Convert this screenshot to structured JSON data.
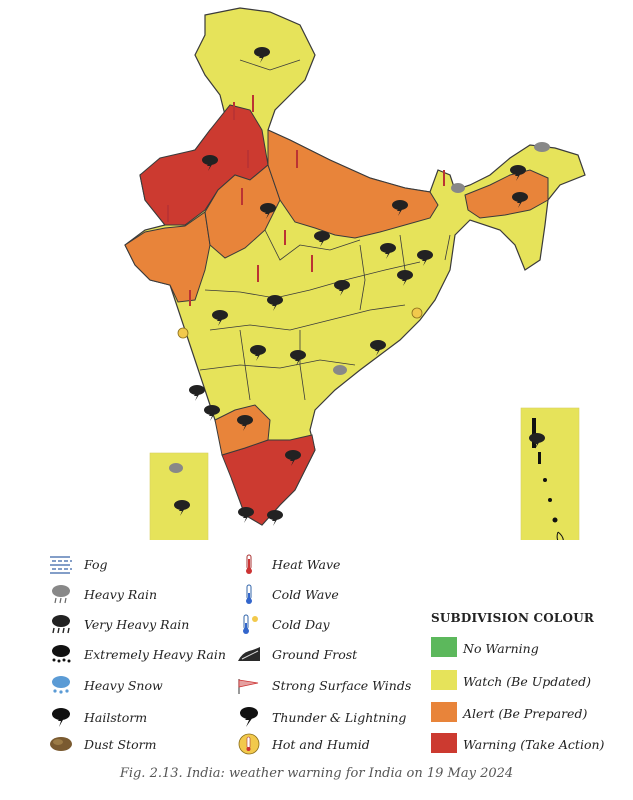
{
  "legend": {
    "hazards_left": [
      {
        "label": "Fog",
        "icon": "fog-icon"
      },
      {
        "label": "Heavy Rain",
        "icon": "heavy-rain-icon"
      },
      {
        "label": "Very Heavy Rain",
        "icon": "very-heavy-rain-icon"
      },
      {
        "label": "Extremely Heavy Rain",
        "icon": "extremely-heavy-rain-icon"
      },
      {
        "label": "Heavy Snow",
        "icon": "heavy-snow-icon"
      },
      {
        "label": "Hailstorm",
        "icon": "hailstorm-icon"
      },
      {
        "label": "Dust Storm",
        "icon": "dust-storm-icon"
      }
    ],
    "hazards_right": [
      {
        "label": "Heat Wave",
        "icon": "heat-wave-icon"
      },
      {
        "label": "Cold Wave",
        "icon": "cold-wave-icon"
      },
      {
        "label": "Cold Day",
        "icon": "cold-day-icon"
      },
      {
        "label": "Ground Frost",
        "icon": "ground-frost-icon"
      },
      {
        "label": "Strong Surface Winds",
        "icon": "strong-winds-icon"
      },
      {
        "label": "Thunder & Lightning",
        "icon": "thunder-lightning-icon"
      },
      {
        "label": "Hot and Humid",
        "icon": "hot-humid-icon"
      }
    ],
    "subdivision_title": "SUBDIVISION COLOUR",
    "subdivision_colours": [
      {
        "label": "No Warning",
        "color": "#5cb85c"
      },
      {
        "label": "Watch (Be Updated)",
        "color": "#e6e35a"
      },
      {
        "label": "Alert (Be Prepared)",
        "color": "#e8843a"
      },
      {
        "label": "Warning (Take Action)",
        "color": "#cc3a30"
      }
    ]
  },
  "map": {
    "colors": {
      "watch": "#e6e35a",
      "alert": "#e8843a",
      "warning": "#cc3a30",
      "border": "#3a3a3a"
    }
  },
  "caption": "Fig. 2.13. India: weather warning for India on 19 May 2024"
}
